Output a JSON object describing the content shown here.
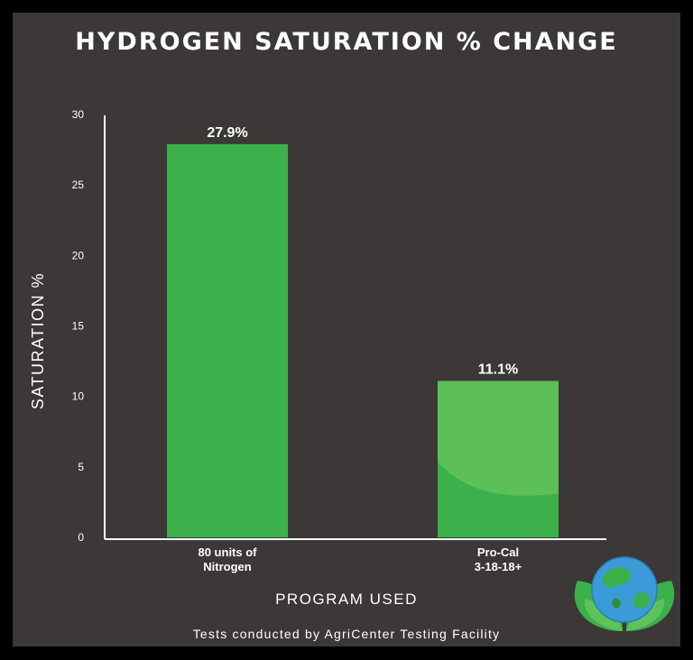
{
  "chart_data": {
    "type": "bar",
    "title": "HYDROGEN SATURATION % CHANGE",
    "ylabel": "SATURATION %",
    "xlabel": "PROGRAM USED",
    "ylim": [
      0,
      30
    ],
    "yticks": [
      0,
      5,
      10,
      15,
      20,
      25,
      30
    ],
    "categories": [
      [
        "80 units of",
        "Nitrogen"
      ],
      [
        "Pro-Cal",
        "3-18-18+"
      ]
    ],
    "values": [
      27.9,
      11.1
    ],
    "data_labels": [
      "27.9%",
      "11.1%"
    ],
    "colors": [
      "#3cb04a",
      "#5cbf58"
    ],
    "grid": false
  },
  "footer": "Tests conducted by AgriCenter Testing Facility"
}
